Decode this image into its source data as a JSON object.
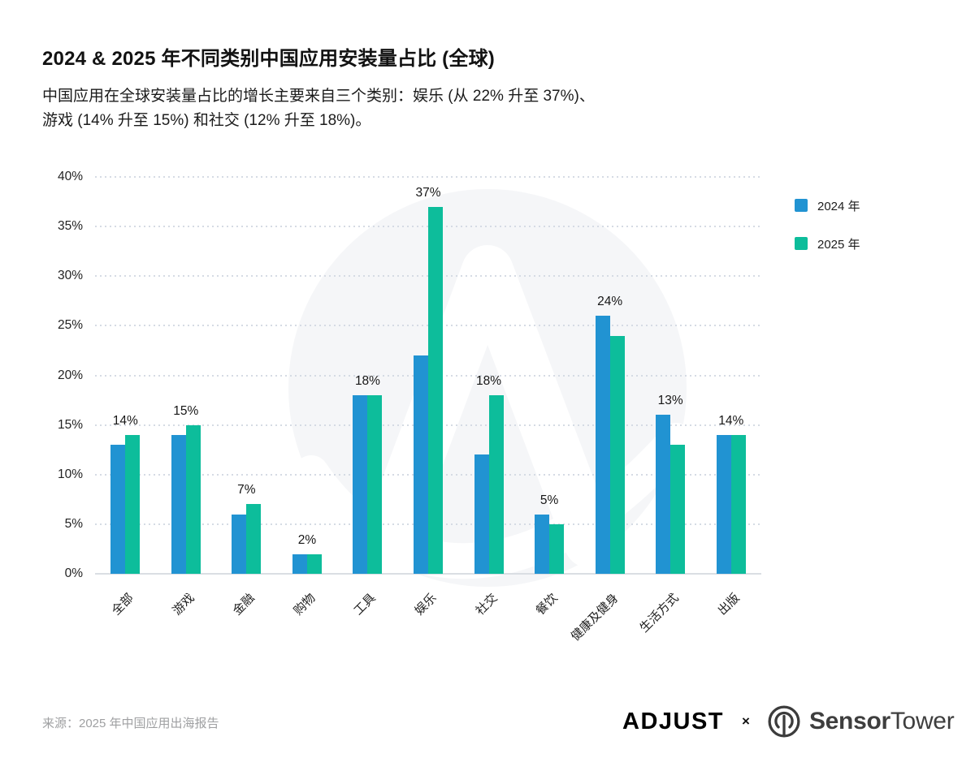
{
  "page": {
    "title": "2024 & 2025 年不同类别中国应用安装量占比 (全球)",
    "subtitle_line1": "中国应用在全球安装量占比的增长主要来自三个类别：娱乐 (从 22% 升至 37%)、",
    "subtitle_line2": "游戏 (14% 升至 15%) 和社交 (12% 升至 18%)。",
    "source": "来源：2025 年中国应用出海报告"
  },
  "legend": [
    {
      "label": "2024 年",
      "color": "#2193D2"
    },
    {
      "label": "2025 年",
      "color": "#0DBD9B"
    }
  ],
  "footer": {
    "adjust_wordmark": "ADJUST",
    "x_mark": "×",
    "sensortower_bold": "Sensor",
    "sensortower_regular": "Tower"
  },
  "colors": {
    "bar_2024": "#2193D2",
    "bar_2025": "#0DBD9B",
    "gridline": "#d5dbe4",
    "watermark": "#f5f6f8"
  },
  "chart_data": {
    "type": "bar",
    "categories": [
      "全部",
      "游戏",
      "金融",
      "购物",
      "工具",
      "娱乐",
      "社交",
      "餐饮",
      "健康及健身",
      "生活方式",
      "出版"
    ],
    "series": [
      {
        "name": "2024 年",
        "color": "#2193D2",
        "values": [
          13,
          14,
          6,
          2,
          18,
          22,
          12,
          6,
          26,
          16,
          14
        ]
      },
      {
        "name": "2025 年",
        "color": "#0DBD9B",
        "values": [
          14,
          15,
          7,
          2,
          18,
          37,
          18,
          5,
          24,
          13,
          14
        ]
      }
    ],
    "bar_labels": [
      "14%",
      "15%",
      "7%",
      "2%",
      "18%",
      "37%",
      "18%",
      "5%",
      "24%",
      "13%",
      "14%"
    ],
    "ylabel_ticks": [
      "0%",
      "5%",
      "10%",
      "15%",
      "20%",
      "25%",
      "30%",
      "35%",
      "40%"
    ],
    "ylim": [
      0,
      40
    ],
    "ytick_step": 5,
    "grid": "dotted-horizontal",
    "legend_position": "right-top",
    "title": "2024 & 2025 年不同类别中国应用安装量占比 (全球)"
  }
}
